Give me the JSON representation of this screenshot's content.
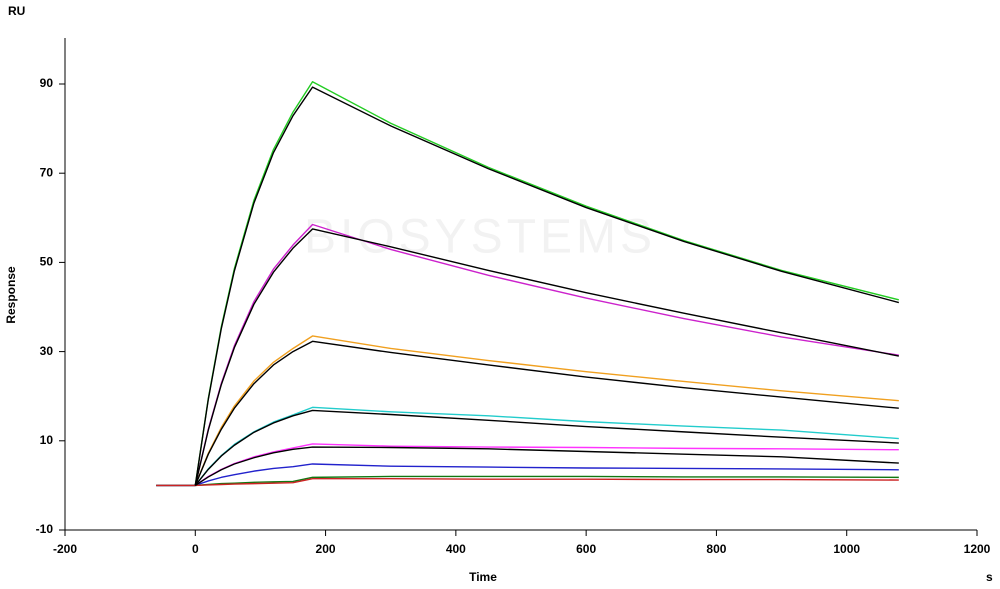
{
  "chart_data": {
    "type": "line",
    "y_unit": "RU",
    "x_unit": "s",
    "y_label": "Response",
    "x_label": "Time",
    "watermark": "BIOSYSTEMS",
    "x": [
      -60,
      0,
      20,
      40,
      60,
      90,
      120,
      150,
      180,
      300,
      450,
      600,
      750,
      900,
      1080
    ],
    "series": [
      {
        "color": "#22cc22",
        "values": [
          0,
          0,
          19.5,
          35.6,
          48.6,
          63.9,
          75.3,
          83.7,
          90.5,
          81.2,
          71.3,
          62.6,
          54.9,
          48.2,
          41.6
        ]
      },
      {
        "color": "#cc22cc",
        "values": [
          0,
          0,
          12.6,
          22.9,
          31.3,
          41.2,
          48.5,
          53.9,
          58.5,
          52.9,
          47.1,
          42,
          37.4,
          33.3,
          29.2
        ]
      },
      {
        "color": "#f0a020",
        "values": [
          0,
          0,
          7.2,
          13,
          17.8,
          23.4,
          27.6,
          30.7,
          33.5,
          30.7,
          28,
          25.5,
          23.3,
          21.2,
          19
        ]
      },
      {
        "color": "#22cccc",
        "values": [
          0,
          0,
          3.7,
          6.7,
          9.2,
          12,
          14.2,
          15.8,
          17.5,
          16.5,
          15.6,
          14.3,
          13.3,
          12.4,
          10.5
        ]
      },
      {
        "color": "#ff33ff",
        "values": [
          0,
          0,
          2,
          3.6,
          4.9,
          6.4,
          7.5,
          8.4,
          9.3,
          8.8,
          8.6,
          8.5,
          8.3,
          8.2,
          8
        ]
      },
      {
        "color": "#2222cc",
        "values": [
          0,
          0,
          1,
          1.8,
          2.4,
          3.2,
          3.8,
          4.2,
          4.8,
          4.3,
          4.1,
          3.9,
          3.8,
          3.7,
          3.5
        ]
      },
      {
        "color": "#117711",
        "values": [
          0,
          0,
          0.2,
          0.4,
          0.5,
          0.7,
          0.8,
          0.9,
          1.8,
          2,
          2,
          2,
          1.9,
          1.9,
          1.8
        ]
      },
      {
        "color": "#cc2222",
        "values": [
          0,
          0,
          0.1,
          0.2,
          0.3,
          0.4,
          0.5,
          0.6,
          1.5,
          1.5,
          1.4,
          1.4,
          1.3,
          1.3,
          1.2
        ]
      },
      {
        "color": "#000000",
        "values": [
          null,
          0,
          19.3,
          35.2,
          48.1,
          63.3,
          74.6,
          82.9,
          89.3,
          80.6,
          71,
          62.3,
          54.7,
          48,
          41
        ]
      },
      {
        "color": "#000000",
        "values": [
          null,
          0,
          12.4,
          22.6,
          30.9,
          40.6,
          47.8,
          53.2,
          57.5,
          53.5,
          48.2,
          43.2,
          38.6,
          34.2,
          29
        ]
      },
      {
        "color": "#000000",
        "values": [
          null,
          0,
          7,
          12.6,
          17.3,
          22.8,
          27,
          30,
          32.3,
          29.8,
          27,
          24.3,
          21.9,
          19.8,
          17.3
        ]
      },
      {
        "color": "#000000",
        "values": [
          null,
          0,
          3.6,
          6.6,
          9,
          11.9,
          14,
          15.6,
          16.8,
          15.9,
          14.6,
          13.2,
          12,
          10.8,
          9.5
        ]
      },
      {
        "color": "#000000",
        "values": [
          null,
          0,
          1.9,
          3.5,
          4.8,
          6.2,
          7.3,
          8.1,
          8.6,
          8.5,
          8.2,
          7.6,
          7,
          6.4,
          5
        ]
      }
    ],
    "xlim": [
      -200,
      1200
    ],
    "xticks": [
      -200,
      0,
      200,
      400,
      600,
      800,
      1000,
      1200
    ],
    "ylim": [
      -10,
      100
    ],
    "yticks": [
      -10,
      10,
      30,
      50,
      70,
      90
    ],
    "grid": false
  }
}
